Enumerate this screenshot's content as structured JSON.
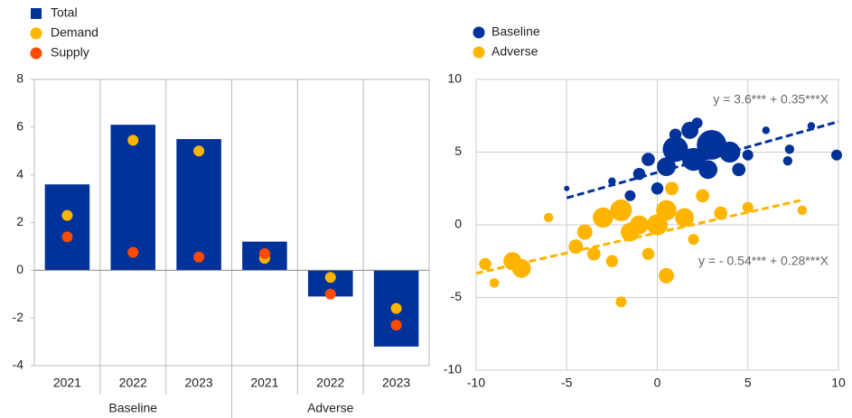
{
  "chart_data": [
    {
      "type": "bar",
      "categories": [
        "2021",
        "2022",
        "2023",
        "2021",
        "2022",
        "2023"
      ],
      "groups": [
        {
          "label": "Baseline",
          "span": 3
        },
        {
          "label": "Adverse",
          "span": 3
        }
      ],
      "series": [
        {
          "name": "Total",
          "kind": "bar",
          "color": "#003299",
          "values": [
            3.6,
            6.1,
            5.5,
            1.2,
            -1.1,
            -3.2
          ]
        },
        {
          "name": "Demand",
          "kind": "dot",
          "color": "#ffb400",
          "values": [
            2.3,
            5.45,
            5.0,
            0.5,
            -0.3,
            -1.6
          ]
        },
        {
          "name": "Supply",
          "kind": "dot",
          "color": "#ff4b00",
          "values": [
            1.4,
            0.75,
            0.55,
            0.7,
            -1.0,
            -2.3
          ]
        }
      ],
      "ylim": [
        -4,
        8
      ],
      "yticks": [
        -4,
        -2,
        0,
        2,
        4,
        6,
        8
      ]
    },
    {
      "type": "scatter",
      "series": [
        {
          "name": "Baseline",
          "color": "#003299",
          "x": [
            3,
            1,
            2,
            0.5,
            4,
            1.8,
            2.8,
            -0.5,
            -1,
            4.5,
            5,
            7.3,
            7.2,
            9.9,
            0,
            -1.5,
            -2.5,
            2.2,
            1,
            -5,
            6,
            8.5
          ],
          "values": [
            5.5,
            5.2,
            4.5,
            4,
            5,
            6.5,
            3.8,
            4.5,
            3.5,
            3.8,
            4.8,
            5.2,
            4.4,
            4.8,
            2.5,
            2,
            3,
            7,
            6.2,
            2.5,
            6.5,
            6.8
          ],
          "sizes": [
            30,
            22,
            18,
            12,
            15,
            10,
            12,
            6,
            5,
            6,
            4,
            3,
            3,
            4,
            5,
            4,
            2,
            4,
            5,
            1,
            2,
            2
          ],
          "trend": {
            "x": [
              -5,
              10
            ],
            "y": [
              1.85,
              7.1
            ]
          },
          "annotation": "y = 3.6*** + 0.35***X"
        },
        {
          "name": "Adverse",
          "color": "#ffb400",
          "x": [
            -8,
            -7.5,
            -9.5,
            -3,
            -2,
            -1.5,
            -1,
            0,
            0.5,
            1.5,
            -4,
            -4.5,
            -3.5,
            -2.5,
            0.5,
            -2,
            -0.5,
            2.5,
            3.5,
            5,
            8,
            -6,
            -9,
            0.8,
            2
          ],
          "values": [
            -2.5,
            -3,
            -2.7,
            0.5,
            1,
            -0.5,
            0,
            0,
            1,
            0.5,
            -0.5,
            -1.5,
            -2,
            -2.5,
            -3.5,
            -5.3,
            -2,
            2,
            0.8,
            1.2,
            1,
            0.5,
            -4,
            2.5,
            -1
          ],
          "sizes": [
            11,
            12,
            5,
            14,
            16,
            12,
            12,
            15,
            14,
            12,
            8,
            7,
            6,
            5,
            8,
            4,
            5,
            6,
            6,
            4,
            3,
            3,
            3,
            6,
            4
          ],
          "trend": {
            "x": [
              -10,
              8
            ],
            "y": [
              -3.34,
              1.7
            ]
          },
          "annotation": "y = - 0.54*** + 0.28***X"
        }
      ],
      "xlim": [
        -10,
        10
      ],
      "xticks": [
        -10,
        -5,
        0,
        5,
        10
      ],
      "ylim": [
        -10,
        10
      ],
      "yticks": [
        -10,
        -5,
        0,
        5,
        10
      ],
      "grid": true
    }
  ]
}
